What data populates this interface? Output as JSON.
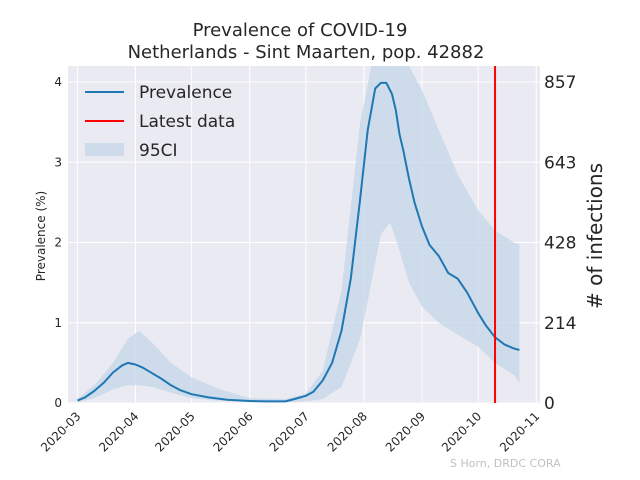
{
  "chart_data": {
    "type": "line",
    "title": "Prevalence of COVID-19",
    "subtitle": "Netherlands - Sint Maarten, pop. 42882",
    "ylabel": "Prevalence (%)",
    "ylabel_right": "# of infections",
    "ylim": [
      0,
      4.2
    ],
    "yticks": [
      0,
      1,
      2,
      3,
      4
    ],
    "yticks_right": [
      0,
      214,
      428,
      643,
      857
    ],
    "xlim": [
      "2020-02-25",
      "2020-11-03"
    ],
    "xticks": [
      "2020-03",
      "2020-04",
      "2020-05",
      "2020-06",
      "2020-07",
      "2020-08",
      "2020-09",
      "2020-10",
      "2020-11"
    ],
    "grid": true,
    "legend_position": "top-left",
    "legend": [
      "Prevalence",
      "Latest data",
      "95CI"
    ],
    "latest_data_date": "2020-10-10",
    "credit": "S Horn, DRDC CORA",
    "colors": {
      "line": "#1f77b4",
      "latest": "#ff0000",
      "ci": "#c4d5e8",
      "background": "#eaeaf2",
      "grid": "#ffffff"
    },
    "series": [
      {
        "name": "Prevalence",
        "x": [
          "2020-03-01",
          "2020-03-05",
          "2020-03-10",
          "2020-03-15",
          "2020-03-20",
          "2020-03-25",
          "2020-03-28",
          "2020-04-01",
          "2020-04-05",
          "2020-04-10",
          "2020-04-15",
          "2020-04-20",
          "2020-04-25",
          "2020-05-01",
          "2020-05-10",
          "2020-05-20",
          "2020-06-01",
          "2020-06-10",
          "2020-06-20",
          "2020-06-25",
          "2020-07-01",
          "2020-07-05",
          "2020-07-10",
          "2020-07-15",
          "2020-07-20",
          "2020-07-25",
          "2020-07-30",
          "2020-08-03",
          "2020-08-07",
          "2020-08-10",
          "2020-08-13",
          "2020-08-16",
          "2020-08-18",
          "2020-08-20",
          "2020-08-22",
          "2020-08-25",
          "2020-08-28",
          "2020-09-01",
          "2020-09-05",
          "2020-09-10",
          "2020-09-15",
          "2020-09-20",
          "2020-09-25",
          "2020-10-01",
          "2020-10-05",
          "2020-10-10",
          "2020-10-15",
          "2020-10-20",
          "2020-10-23"
        ],
        "y": [
          0.03,
          0.07,
          0.15,
          0.25,
          0.38,
          0.47,
          0.5,
          0.48,
          0.44,
          0.37,
          0.3,
          0.22,
          0.16,
          0.11,
          0.07,
          0.04,
          0.025,
          0.02,
          0.02,
          0.05,
          0.09,
          0.14,
          0.28,
          0.5,
          0.9,
          1.55,
          2.55,
          3.4,
          3.92,
          3.99,
          3.99,
          3.85,
          3.65,
          3.35,
          3.15,
          2.8,
          2.5,
          2.2,
          1.97,
          1.83,
          1.62,
          1.55,
          1.38,
          1.12,
          0.97,
          0.82,
          0.73,
          0.68,
          0.66
        ]
      },
      {
        "name": "95CI",
        "x": [
          "2020-03-01",
          "2020-03-10",
          "2020-03-20",
          "2020-03-28",
          "2020-04-03",
          "2020-04-10",
          "2020-04-20",
          "2020-05-01",
          "2020-05-15",
          "2020-06-01",
          "2020-06-20",
          "2020-07-01",
          "2020-07-10",
          "2020-07-20",
          "2020-07-30",
          "2020-08-05",
          "2020-08-10",
          "2020-08-15",
          "2020-08-20",
          "2020-08-25",
          "2020-09-01",
          "2020-09-10",
          "2020-09-20",
          "2020-10-01",
          "2020-10-10",
          "2020-10-20",
          "2020-10-23"
        ],
        "lower": [
          0.01,
          0.06,
          0.17,
          0.22,
          0.22,
          0.2,
          0.13,
          0.06,
          0.03,
          0.01,
          0.01,
          0.02,
          0.05,
          0.2,
          0.8,
          1.5,
          2.1,
          2.25,
          1.9,
          1.5,
          1.2,
          1.0,
          0.85,
          0.7,
          0.5,
          0.35,
          0.25
        ],
        "upper": [
          0.05,
          0.22,
          0.5,
          0.8,
          0.9,
          0.75,
          0.5,
          0.32,
          0.18,
          0.06,
          0.05,
          0.12,
          0.4,
          1.4,
          3.5,
          4.2,
          4.2,
          4.2,
          4.2,
          4.2,
          3.9,
          3.4,
          2.85,
          2.4,
          2.15,
          2.0,
          1.98
        ]
      }
    ]
  }
}
